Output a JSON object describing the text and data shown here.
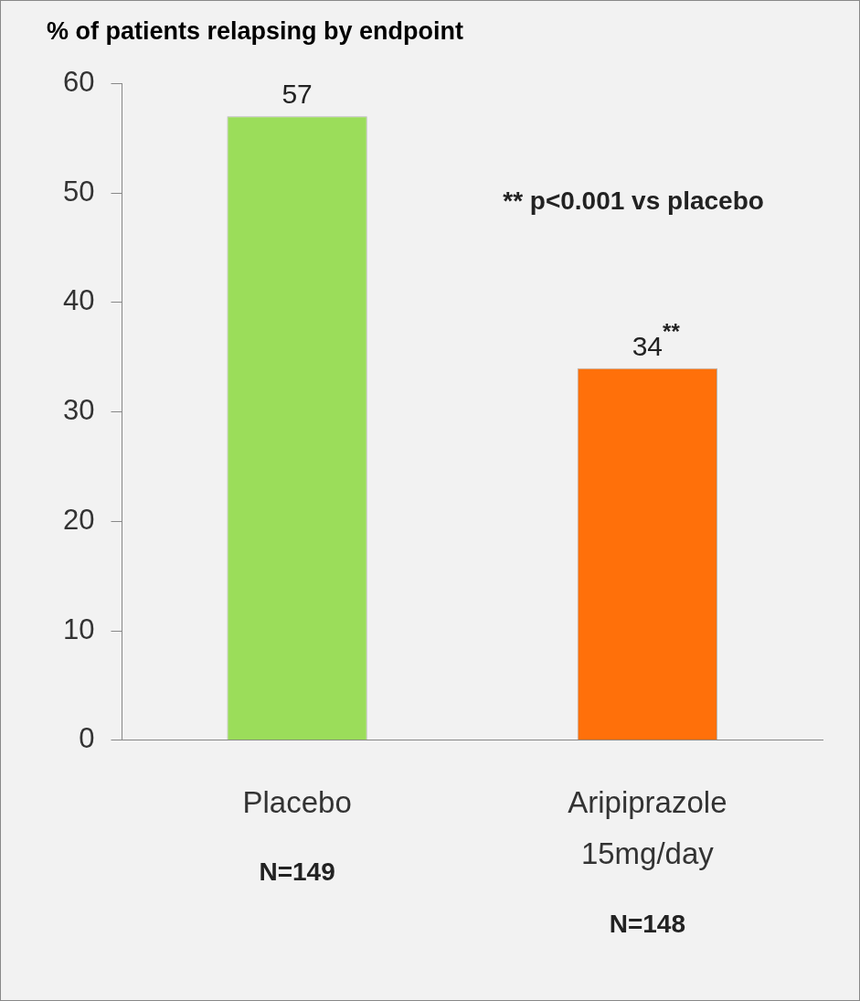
{
  "chart_data": {
    "type": "bar",
    "title": "% of patients relapsing by endpoint",
    "categories": [
      "Placebo",
      "Aripiprazole 15mg/day"
    ],
    "values": [
      57,
      34
    ],
    "colors": [
      "#9bdd5a",
      "#ff700a"
    ],
    "value_labels": [
      "57",
      "34$^{**}$"
    ],
    "ylim": [
      0,
      60
    ],
    "yticks": [
      0,
      10,
      20,
      30,
      40,
      50,
      60
    ],
    "grid": false,
    "legend": false,
    "annotations": [
      {
        "text": "** p<0.001 vs placebo"
      },
      "N=149",
      "N=148"
    ]
  }
}
